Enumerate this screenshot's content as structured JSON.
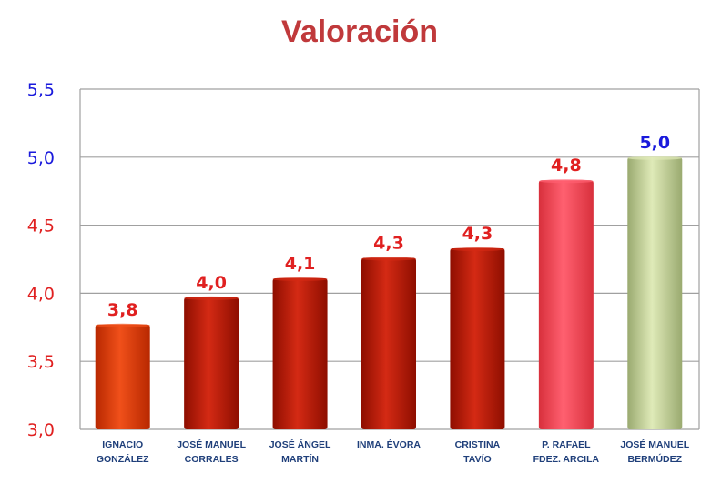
{
  "chart_data": {
    "type": "bar",
    "title": "Valoración",
    "xlabel": "",
    "ylabel": "",
    "ylim": [
      3.0,
      5.5
    ],
    "yticks": [
      "3,0",
      "3,5",
      "4,0",
      "4,5",
      "5,0",
      "5,5"
    ],
    "ytick_values": [
      3.0,
      3.5,
      4.0,
      4.5,
      5.0,
      5.5
    ],
    "ytick_colors": [
      "#e02020",
      "#e02020",
      "#e02020",
      "#e02020",
      "#1a1adc",
      "#1a1adc"
    ],
    "grid": true,
    "categories": [
      [
        "IGNACIO",
        "GONZÁLEZ"
      ],
      [
        "JOSÉ MANUEL",
        "CORRALES"
      ],
      [
        "JOSÉ ÁNGEL",
        "MARTÍN"
      ],
      [
        "INMA. ÉVORA"
      ],
      [
        "CRISTINA",
        "TAVÍO"
      ],
      [
        "P. RAFAEL",
        "FDEZ. ARCILA"
      ],
      [
        "JOSÉ MANUEL",
        "BERMÚDEZ"
      ]
    ],
    "values": [
      3.77,
      3.97,
      4.11,
      4.26,
      4.33,
      4.83,
      5.0
    ],
    "data_labels": [
      "3,8",
      "4,0",
      "4,1",
      "4,3",
      "4,3",
      "4,8",
      "5,0"
    ],
    "label_colors": [
      "#e02020",
      "#e02020",
      "#e02020",
      "#e02020",
      "#e02020",
      "#e02020",
      "#1a1adc"
    ],
    "bar_colors": [
      [
        "#b82800",
        "#f0501a"
      ],
      [
        "#8e0e00",
        "#d42a14"
      ],
      [
        "#8e0e00",
        "#d42a14"
      ],
      [
        "#8e0e00",
        "#d42a14"
      ],
      [
        "#8e0e00",
        "#d42a14"
      ],
      [
        "#d8303c",
        "#ff6070"
      ],
      [
        "#9aaa70",
        "#dfeab8"
      ]
    ]
  }
}
